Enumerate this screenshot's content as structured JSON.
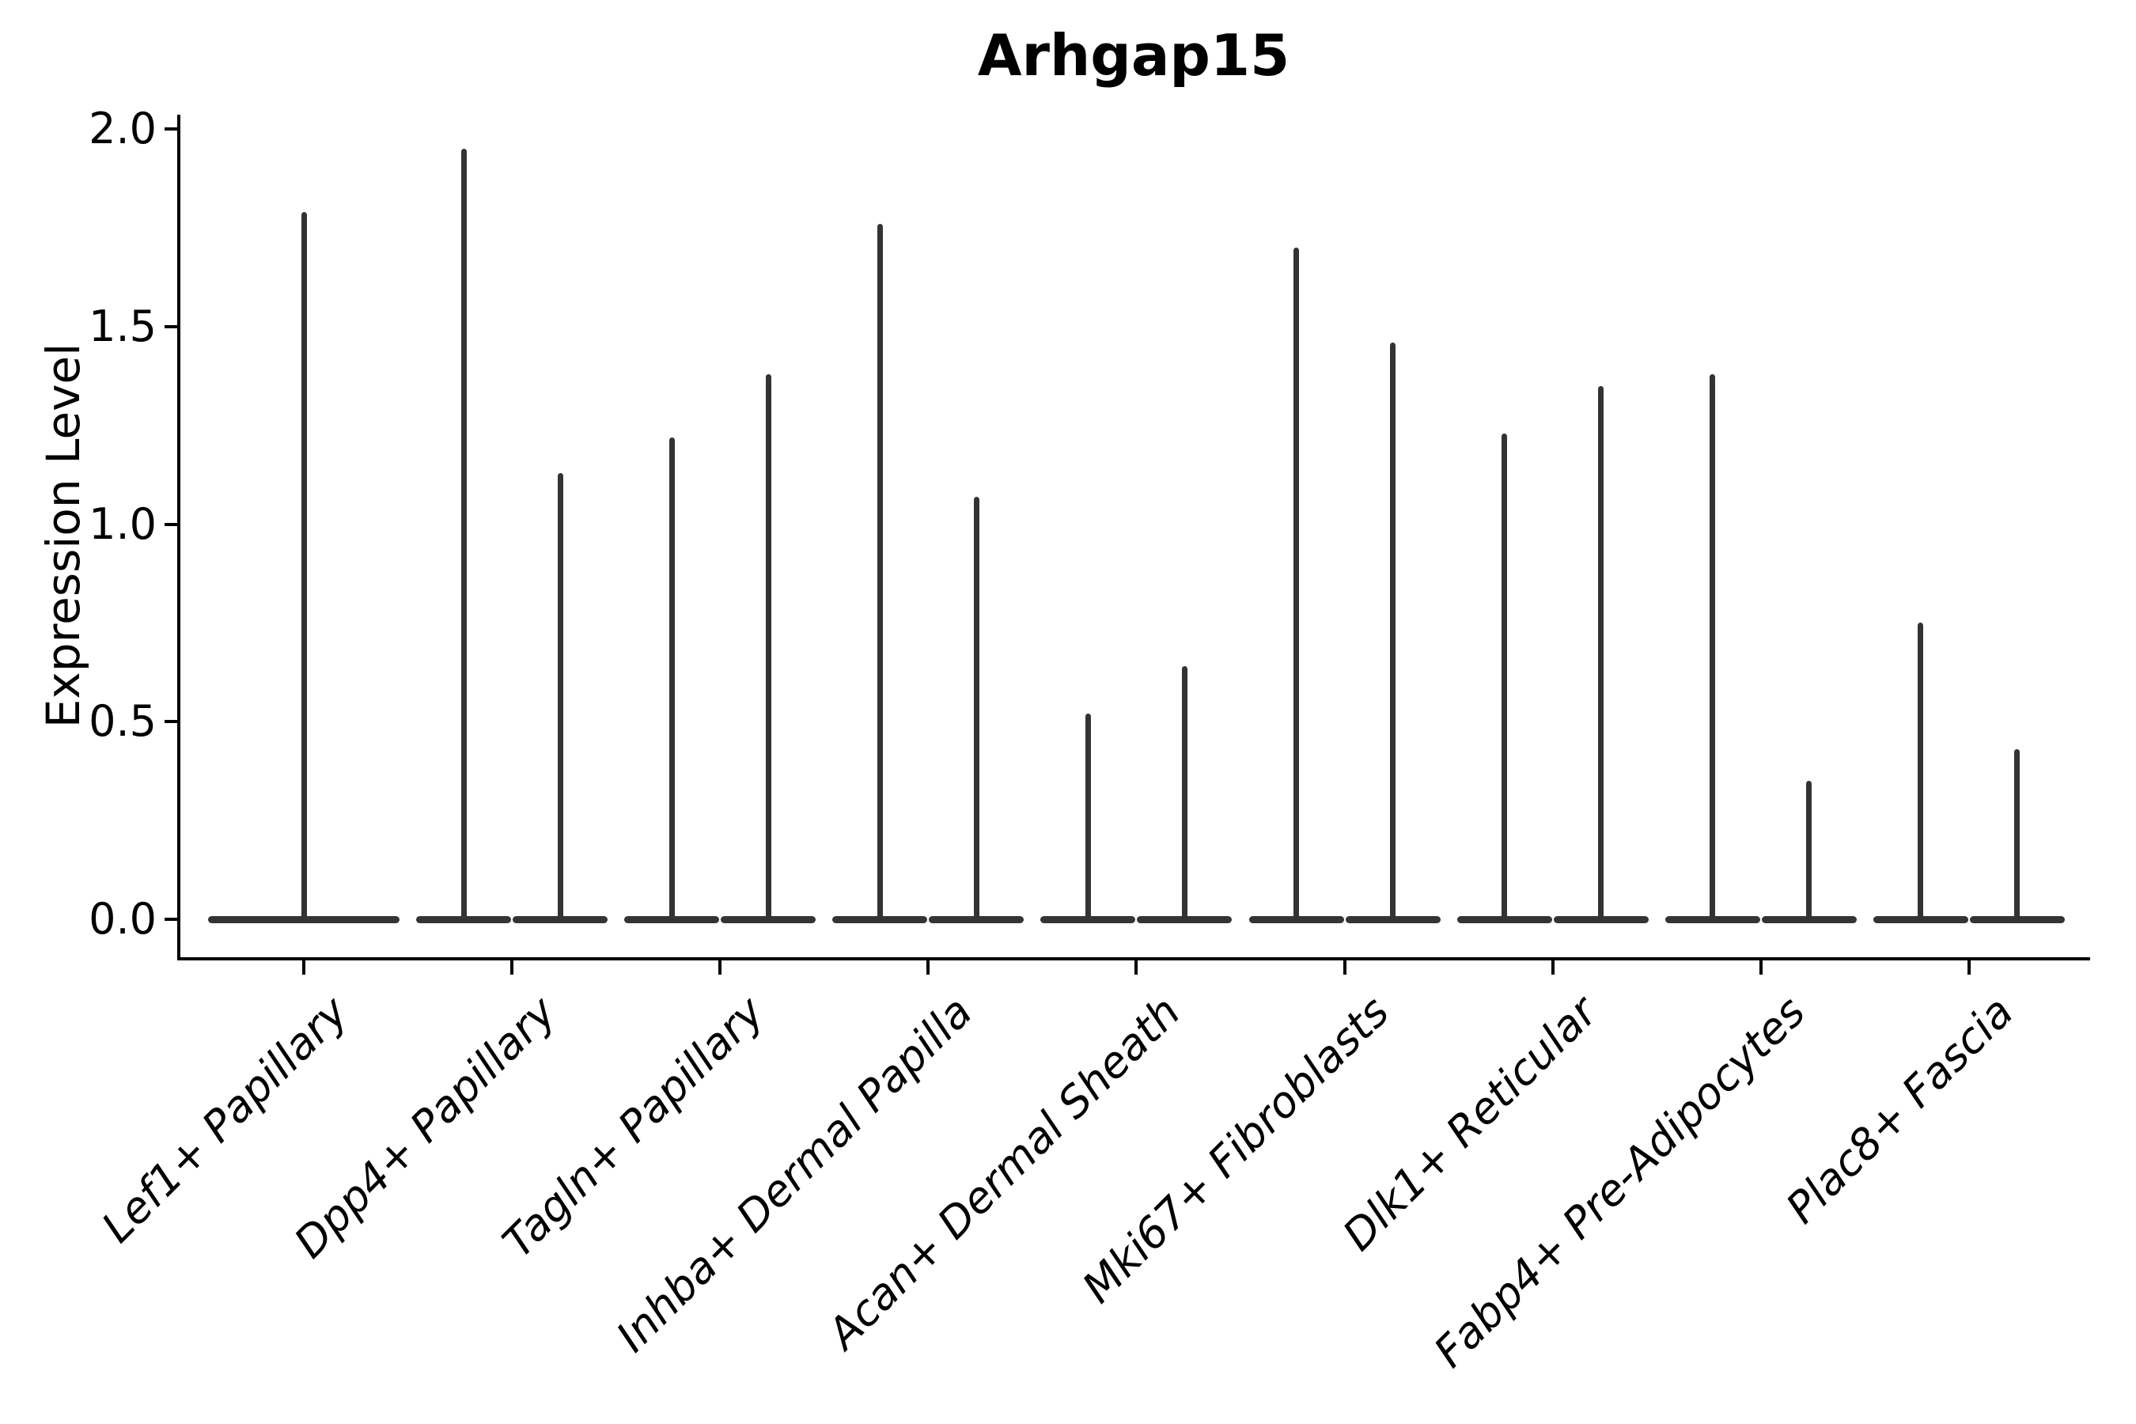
{
  "chart_data": {
    "type": "violin",
    "title": "Arhgap15",
    "ylabel": "Expression Level",
    "xlabel": "",
    "grid": false,
    "legend": null,
    "ylim": [
      -0.1,
      2.04
    ],
    "yticks": [
      {
        "value": 0.0,
        "label": "0.0"
      },
      {
        "value": 0.5,
        "label": "0.5"
      },
      {
        "value": 1.0,
        "label": "1.0"
      },
      {
        "value": 1.5,
        "label": "1.5"
      },
      {
        "value": 2.0,
        "label": "2.0"
      }
    ],
    "categories": [
      "Lef1+ Papillary",
      "Dpp4+ Papillary",
      "Tagln+ Papillary",
      "Inhba+ Dermal Papilla",
      "Acan+ Dermal Sheath",
      "Mki67+ Fibroblasts",
      "Dlk1+ Reticular",
      "Fabp4+ Pre-Adipocytes",
      "Plac8+ Fascia"
    ],
    "violin_shape": "wide flat base at expression 0 with thin density spike rising to the maximum expression value",
    "groups": [
      {
        "label": "Lef1+ Papillary",
        "spike_maxima": [
          1.79
        ]
      },
      {
        "label": "Dpp4+ Papillary",
        "spike_maxima": [
          1.95,
          1.13
        ]
      },
      {
        "label": "Tagln+ Papillary",
        "spike_maxima": [
          1.22,
          1.38
        ]
      },
      {
        "label": "Inhba+ Dermal Papilla",
        "spike_maxima": [
          1.76,
          1.07
        ]
      },
      {
        "label": "Acan+ Dermal Sheath",
        "spike_maxima": [
          0.52,
          0.64
        ]
      },
      {
        "label": "Mki67+ Fibroblasts",
        "spike_maxima": [
          1.7,
          1.46
        ]
      },
      {
        "label": "Dlk1+ Reticular",
        "spike_maxima": [
          1.23,
          1.35
        ]
      },
      {
        "label": "Fabp4+ Pre-Adipocytes",
        "spike_maxima": [
          1.38,
          0.35
        ]
      },
      {
        "label": "Plac8+ Fascia",
        "spike_maxima": [
          0.75,
          0.43
        ]
      }
    ],
    "colors": {
      "violin": "#333333",
      "axis": "#000000",
      "text": "#000000",
      "background": "#ffffff"
    }
  }
}
